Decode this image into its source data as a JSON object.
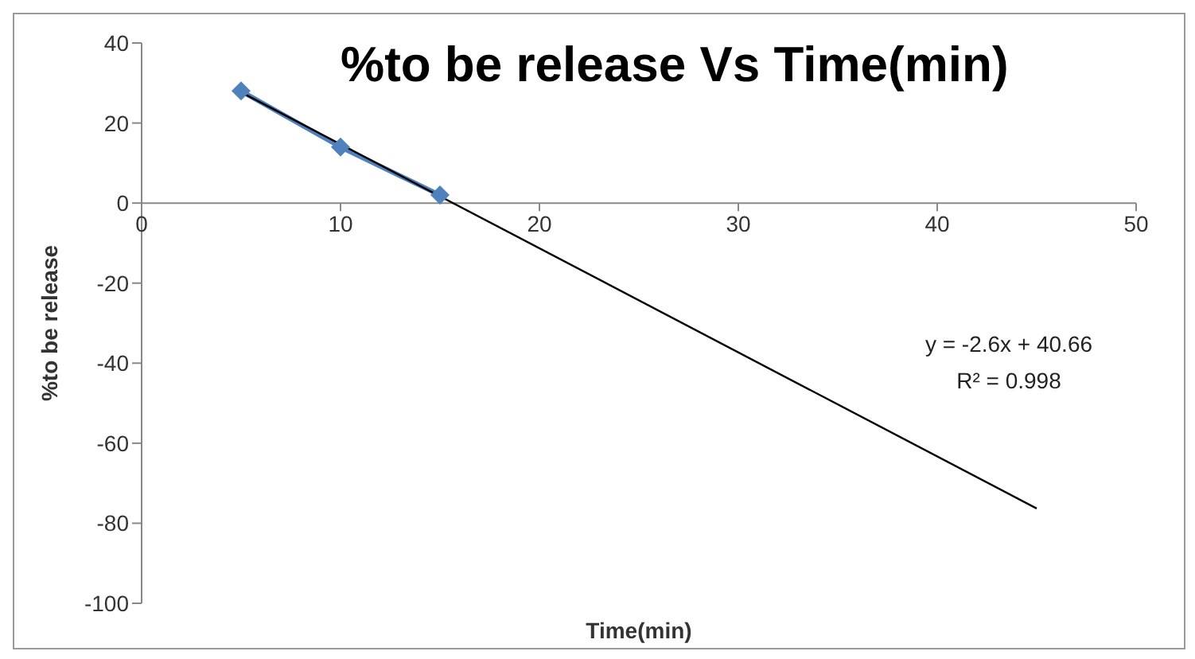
{
  "chart_data": {
    "type": "line",
    "title": "%to be release Vs Time(min)",
    "xlabel": "Time(min)",
    "ylabel": "%to be release",
    "annotations": [
      "y = -2.6x + 40.66",
      "R² = 0.998"
    ],
    "series": [
      {
        "x": [
          5,
          10,
          15
        ],
        "values": [
          28,
          14,
          2
        ],
        "color": "#4f81bd",
        "marker": "diamond"
      },
      {
        "type": "line",
        "x": [
          5,
          45
        ],
        "values": [
          27.7,
          -76.3
        ],
        "color": "#000000",
        "marker": "none"
      }
    ],
    "xlim": [
      0,
      50
    ],
    "xticks": [
      0,
      10,
      20,
      30,
      40,
      50
    ],
    "ylim": [
      -100,
      40
    ],
    "yticks": [
      -100,
      -80,
      -60,
      -40,
      -20,
      0,
      20,
      40
    ]
  }
}
